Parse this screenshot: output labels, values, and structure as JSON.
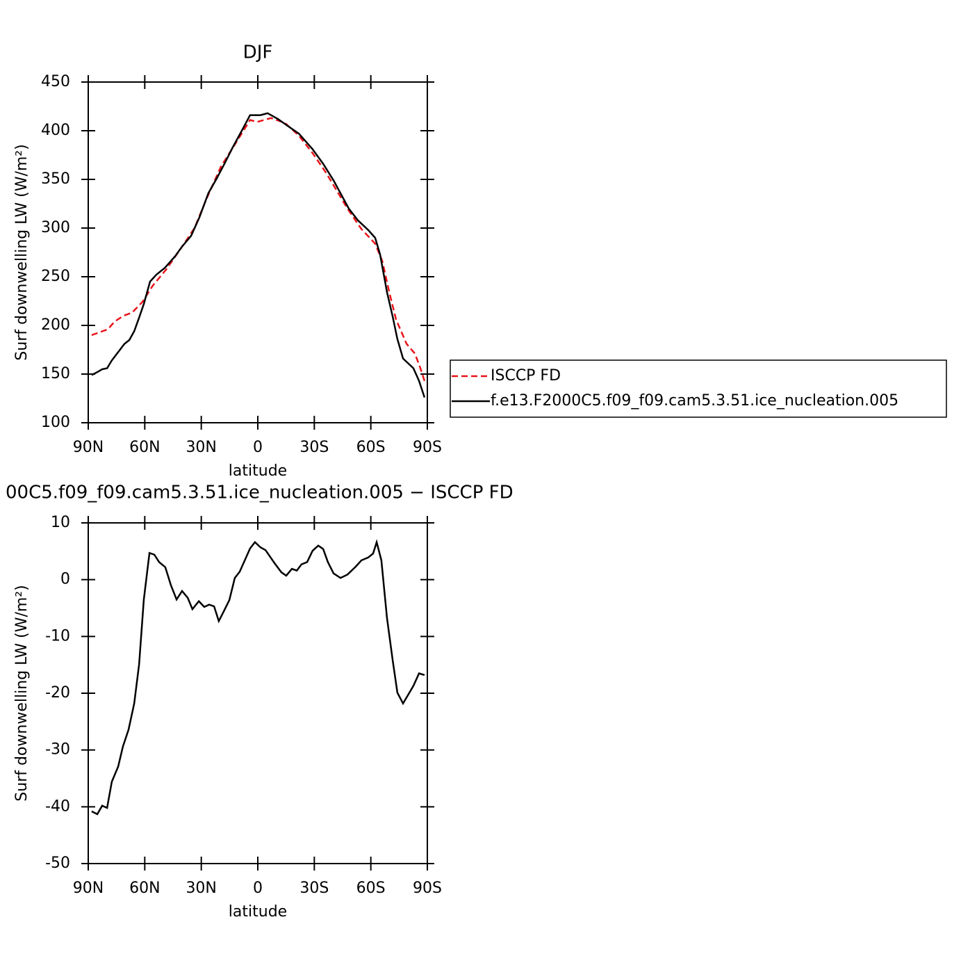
{
  "chart_data": [
    {
      "type": "line",
      "title": "DJF",
      "x_label": "latitude",
      "y_label": "Surf downwelling LW (W/m²)",
      "xlim": [
        90,
        -90
      ],
      "xticks": [
        {
          "value": 90,
          "label": "90N"
        },
        {
          "value": 60,
          "label": "60N"
        },
        {
          "value": 30,
          "label": "30N"
        },
        0,
        {
          "value": -30,
          "label": "30S"
        },
        {
          "value": -60,
          "label": "60S"
        },
        {
          "value": -90,
          "label": "90S"
        }
      ],
      "ylim": [
        100,
        450
      ],
      "yticks": [
        100,
        150,
        200,
        250,
        300,
        350,
        400,
        450
      ],
      "legend": "right",
      "series": [
        {
          "name": "ISCCP FD",
          "color": "#e8141a",
          "line_style": "dashed",
          "x": [
            88.2,
            79.6,
            76,
            71.2,
            66.8,
            61.3,
            55.7,
            48.4,
            39.1,
            33.6,
            27,
            19.6,
            11.5,
            4.1,
            0.4,
            -7,
            -14.4,
            -21.8,
            -29.1,
            -36.5,
            -47.6,
            -55,
            -62.3,
            -66.1,
            -69.8,
            -73.4,
            -79,
            -83.4,
            -86.3,
            -88.5
          ],
          "values": [
            190,
            196,
            204,
            210,
            213,
            224,
            241,
            258,
            284,
            300,
            331,
            363,
            388,
            411,
            409,
            413,
            408,
            395,
            377,
            356,
            320,
            299,
            284,
            266,
            234,
            206,
            181,
            171,
            156,
            143
          ]
        },
        {
          "name": "f.e13.F2000C5.f09_f09.cam5.3.51.ice_nucleation.005",
          "color": "#000000",
          "line_style": "solid",
          "x": [
            88.2,
            85.2,
            82.6,
            80,
            77.5,
            70.8,
            68.2,
            65.6,
            63,
            60.5,
            57.2,
            53.9,
            49.4,
            43.9,
            40.2,
            35.4,
            31,
            26.2,
            21.8,
            17.7,
            13.3,
            8.5,
            4.1,
            -1.4,
            -5.2,
            -10.7,
            -15.1,
            -21.8,
            -29.1,
            -34.7,
            -40.2,
            -48.3,
            -53.1,
            -58.6,
            -62.3,
            -64.9,
            -68.6,
            -71.6,
            -74.1,
            -77.1,
            -82.6,
            -85.6,
            -88.5
          ],
          "values": [
            149,
            152,
            155,
            156,
            164,
            181,
            185,
            194,
            208,
            222,
            245,
            252,
            259,
            271,
            281,
            292,
            311,
            336,
            351,
            366,
            383,
            400,
            416,
            416,
            418,
            412,
            406,
            397,
            381,
            366,
            349,
            320,
            308,
            298,
            290,
            273,
            234,
            209,
            186,
            166,
            156,
            143,
            126
          ]
        }
      ]
    },
    {
      "type": "line",
      "title": "00C5.f09_f09.cam5.3.51.ice_nucleation.005 − ISCCP FD",
      "x_label": "latitude",
      "y_label": "Surf downwelling LW (W/m²)",
      "xlim": [
        90,
        -90
      ],
      "xticks": [
        {
          "value": 90,
          "label": "90N"
        },
        {
          "value": 60,
          "label": "60N"
        },
        {
          "value": 30,
          "label": "30N"
        },
        0,
        {
          "value": -30,
          "label": "30S"
        },
        {
          "value": -60,
          "label": "60S"
        },
        {
          "value": -90,
          "label": "90S"
        }
      ],
      "ylim": [
        -50,
        10
      ],
      "yticks": [
        -50,
        -40,
        -30,
        -20,
        -10,
        0,
        10
      ],
      "color": "#000000",
      "x": [
        88.2,
        85.2,
        82.6,
        80,
        77.5,
        74.1,
        71.6,
        68.6,
        65.6,
        63,
        60.5,
        57.5,
        54.9,
        52.4,
        49.1,
        46.1,
        43.1,
        40.2,
        37.2,
        34.7,
        31.3,
        28.4,
        25.8,
        23.2,
        20.7,
        18.1,
        15.1,
        12.2,
        9.6,
        4.1,
        1.5,
        -1.4,
        -4.1,
        -8.9,
        -12.5,
        -15.1,
        -18.1,
        -20.7,
        -23.2,
        -26.2,
        -29.1,
        -32.1,
        -34.7,
        -37.2,
        -40.2,
        -43.9,
        -47.6,
        -52,
        -55,
        -58.6,
        -61.2,
        -63.1,
        -65.6,
        -68.6,
        -71.6,
        -74.1,
        -77.1,
        -82.6,
        -85.6,
        -88.5
      ],
      "values": [
        -40.8,
        -41.3,
        -39.8,
        -40.2,
        -35.6,
        -32.9,
        -29.4,
        -26.4,
        -21.8,
        -14.9,
        -3.5,
        4.7,
        4.4,
        3.1,
        2.2,
        -1.0,
        -3.5,
        -2.0,
        -3.2,
        -5.2,
        -3.8,
        -4.8,
        -4.4,
        -4.7,
        -7.3,
        -5.6,
        -3.6,
        0.3,
        1.4,
        5.5,
        6.6,
        5.7,
        5.2,
        2.9,
        1.3,
        0.7,
        1.9,
        1.6,
        2.7,
        3.1,
        5.1,
        6.0,
        5.4,
        3.1,
        1.1,
        0.3,
        0.9,
        2.3,
        3.4,
        3.9,
        4.6,
        6.6,
        3.4,
        -6.8,
        -14.2,
        -19.9,
        -21.8,
        -18.7,
        -16.5,
        -16.8
      ]
    }
  ]
}
